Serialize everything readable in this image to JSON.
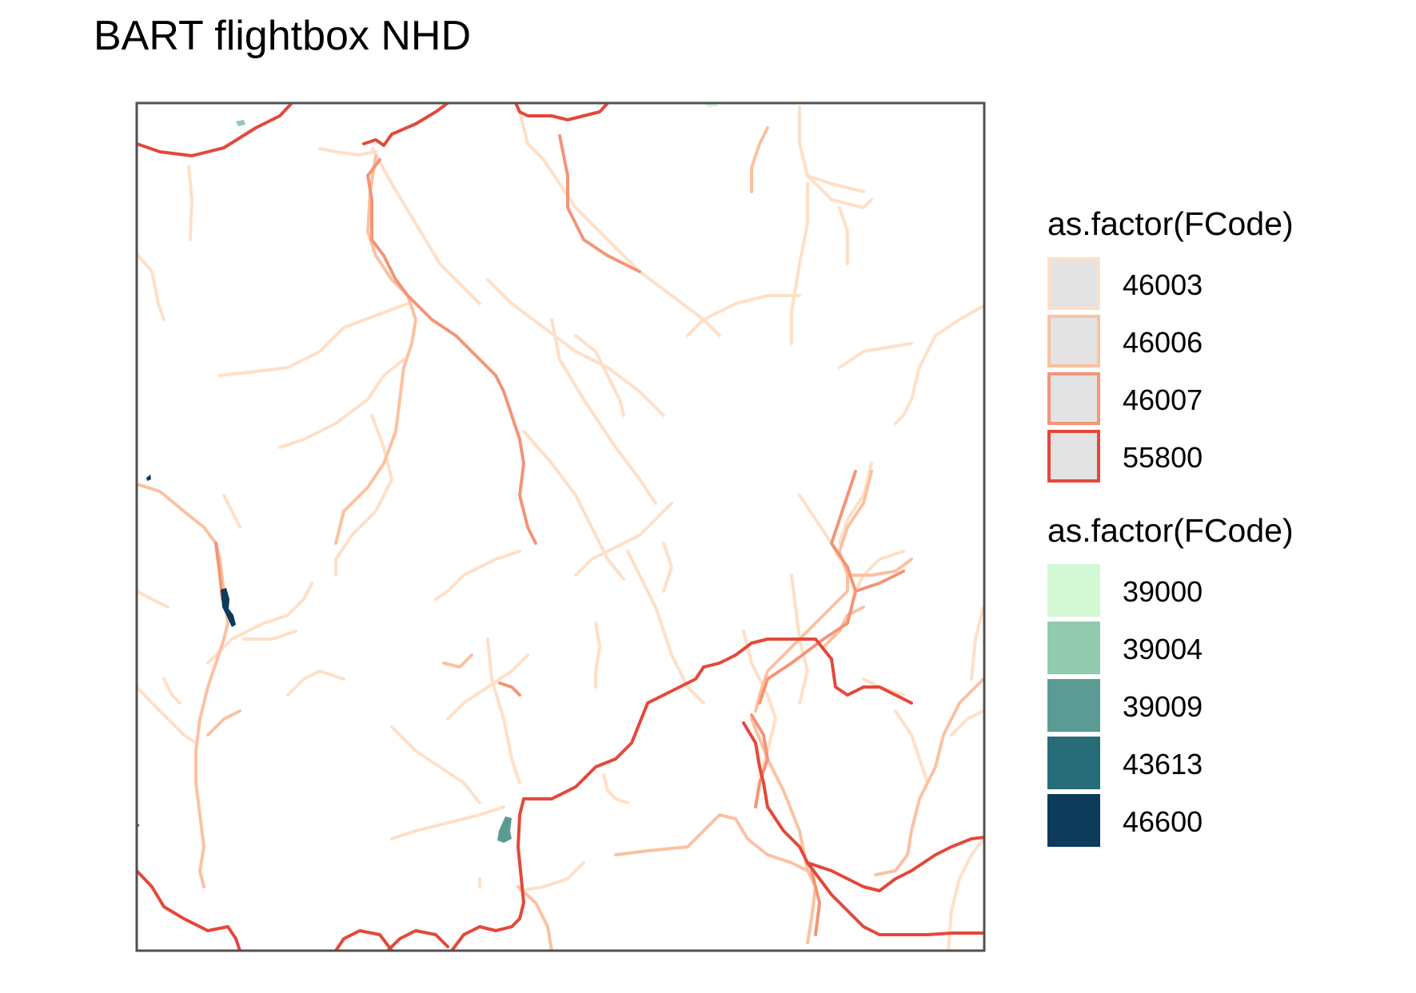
{
  "title": "BART flightbox NHD",
  "legend": {
    "flowlines": {
      "title": "as.factor(FCode)",
      "items": [
        {
          "code": "46003",
          "color": "#fee0c8"
        },
        {
          "code": "46006",
          "color": "#fcc1a1"
        },
        {
          "code": "46007",
          "color": "#f39576"
        },
        {
          "code": "55800",
          "color": "#e4483a"
        }
      ]
    },
    "waterbodies": {
      "title": "as.factor(FCode)",
      "items": [
        {
          "code": "39000",
          "color": "#d3f8d4"
        },
        {
          "code": "39004",
          "color": "#92cab0"
        },
        {
          "code": "39009",
          "color": "#5a9c94"
        },
        {
          "code": "43613",
          "color": "#286c7a"
        },
        {
          "code": "46600",
          "color": "#0c3b5b"
        }
      ]
    }
  },
  "colors": {
    "frame": "#505050",
    "key_fill": "#e3e3e3",
    "background": "#ffffff"
  }
}
